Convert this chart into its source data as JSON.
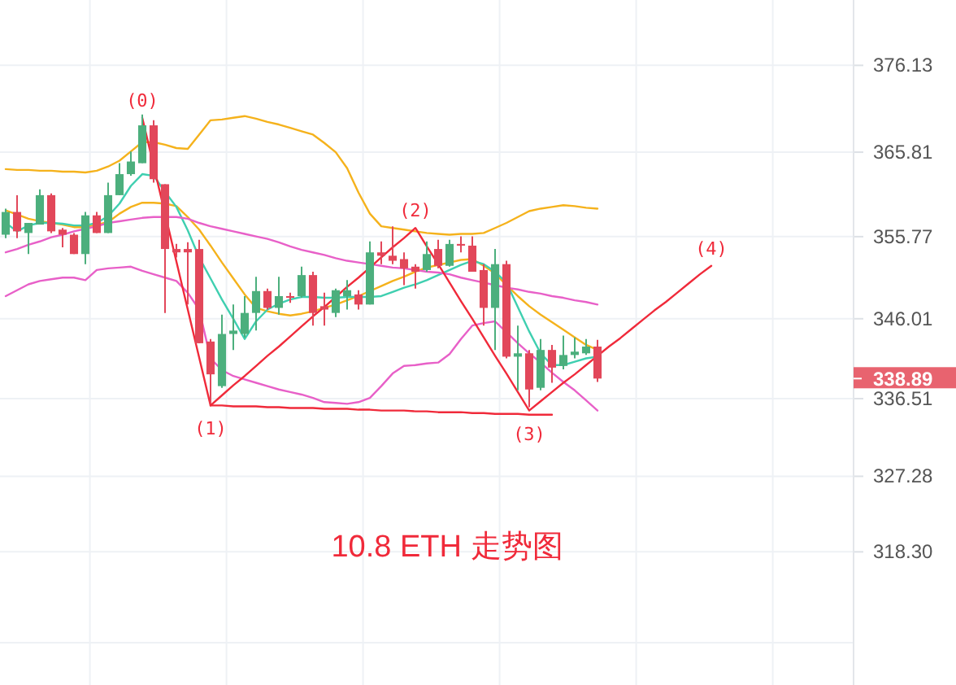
{
  "chart_data": {
    "type": "candlestick",
    "categories": [
      null,
      null,
      null,
      null,
      null,
      null,
      null,
      null,
      null,
      null,
      null,
      null,
      null,
      null,
      null,
      null,
      null,
      null,
      null,
      null,
      null,
      null,
      null,
      null,
      null,
      null,
      null,
      null,
      null,
      null,
      null,
      null,
      null,
      null,
      null,
      null,
      null,
      null,
      null,
      null,
      null,
      null,
      null,
      null,
      null,
      null,
      null,
      null,
      null,
      null,
      null,
      null,
      null,
      null,
      null,
      null,
      null,
      null,
      null,
      null,
      null,
      null,
      null,
      null,
      null,
      null,
      null,
      null,
      null,
      null,
      null,
      null,
      null,
      null,
      null
    ],
    "ohlc": [
      [
        356.0,
        359.1,
        355.6,
        358.7
      ],
      [
        358.7,
        360.7,
        355.6,
        356.4
      ],
      [
        356.2,
        357.4,
        353.7,
        357.4
      ],
      [
        357.2,
        361.4,
        357.2,
        360.7
      ],
      [
        360.7,
        360.9,
        356.2,
        356.4
      ],
      [
        356.6,
        356.8,
        354.5,
        356.0
      ],
      [
        356.0,
        356.2,
        353.7,
        353.7
      ],
      [
        353.7,
        358.7,
        352.5,
        358.3
      ],
      [
        358.3,
        358.7,
        356.2,
        356.2
      ],
      [
        356.2,
        362.2,
        356.2,
        360.7
      ],
      [
        360.7,
        364.5,
        360.7,
        363.2
      ],
      [
        363.2,
        365.9,
        363.0,
        364.7
      ],
      [
        364.5,
        370.3,
        364.5,
        369.0
      ],
      [
        369.0,
        369.6,
        362.2,
        362.6
      ],
      [
        362.0,
        362.0,
        346.7,
        354.3
      ],
      [
        354.3,
        354.9,
        353.3,
        353.9
      ],
      [
        354.3,
        355.1,
        347.7,
        353.9
      ],
      [
        354.3,
        355.4,
        343.1,
        343.1
      ],
      [
        343.3,
        343.6,
        335.9,
        339.4
      ],
      [
        338.0,
        346.5,
        337.8,
        344.2
      ],
      [
        344.2,
        347.7,
        342.3,
        344.6
      ],
      [
        344.2,
        348.7,
        343.8,
        346.7
      ],
      [
        346.7,
        351.0,
        344.6,
        349.3
      ],
      [
        349.3,
        349.6,
        347.1,
        347.3
      ],
      [
        347.3,
        351.0,
        346.5,
        348.7
      ],
      [
        348.7,
        349.1,
        347.9,
        348.5
      ],
      [
        348.7,
        352.2,
        348.5,
        351.2
      ],
      [
        351.2,
        351.6,
        345.2,
        346.7
      ],
      [
        347.5,
        349.1,
        345.2,
        347.1
      ],
      [
        346.7,
        349.6,
        346.2,
        349.4
      ],
      [
        348.7,
        350.6,
        347.1,
        349.4
      ],
      [
        348.9,
        349.4,
        347.1,
        347.7
      ],
      [
        347.7,
        355.2,
        347.7,
        353.9
      ],
      [
        353.9,
        355.2,
        352.5,
        353.5
      ],
      [
        353.5,
        357.0,
        352.5,
        352.9
      ],
      [
        353.1,
        353.9,
        350.0,
        352.0
      ],
      [
        352.2,
        352.5,
        349.6,
        351.6
      ],
      [
        351.8,
        355.2,
        351.6,
        353.7
      ],
      [
        354.3,
        355.4,
        352.0,
        352.3
      ],
      [
        352.3,
        355.4,
        352.2,
        354.9
      ],
      [
        354.9,
        355.8,
        353.9,
        354.7
      ],
      [
        354.7,
        355.8,
        351.6,
        351.6
      ],
      [
        351.8,
        352.5,
        345.2,
        347.3
      ],
      [
        347.3,
        354.3,
        342.3,
        352.5
      ],
      [
        352.5,
        352.9,
        341.3,
        341.5
      ],
      [
        341.5,
        345.2,
        337.5,
        341.9
      ],
      [
        341.9,
        342.3,
        335.5,
        337.6
      ],
      [
        337.8,
        343.6,
        337.5,
        342.3
      ],
      [
        342.3,
        342.9,
        338.4,
        340.2
      ],
      [
        340.4,
        344.0,
        340.0,
        341.7
      ],
      [
        341.7,
        343.8,
        341.3,
        342.1
      ],
      [
        341.9,
        343.6,
        341.7,
        342.7
      ],
      [
        342.7,
        343.5,
        338.5,
        338.9
      ],
      null,
      null,
      null,
      null,
      null,
      null,
      null,
      null,
      null,
      null,
      null,
      null,
      null,
      null,
      null,
      null,
      null,
      null,
      null,
      null,
      null,
      null
    ],
    "series": [
      {
        "type": "line",
        "color": "#f5b21c",
        "values": [
          363.8,
          363.7,
          363.7,
          363.6,
          363.6,
          363.5,
          363.5,
          363.4,
          363.6,
          364.1,
          364.8,
          365.9,
          367.0,
          367.0,
          366.7,
          366.3,
          366.2,
          367.9,
          369.6,
          369.7,
          369.9,
          370.1,
          369.8,
          369.4,
          369.1,
          368.7,
          368.3,
          367.9,
          366.9,
          365.8,
          363.9,
          361.0,
          358.5,
          357.0,
          356.8,
          356.6,
          356.4,
          356.2,
          356.1,
          356.0,
          356.1,
          356.1,
          356.2,
          356.8,
          357.4,
          358.1,
          358.8,
          359.1,
          359.3,
          359.5,
          359.4,
          359.2,
          359.1,
          null,
          null,
          null,
          null,
          null,
          null,
          null,
          null,
          null,
          null,
          null,
          null,
          null,
          null,
          null,
          null,
          null,
          null,
          null,
          null,
          null,
          null
        ]
      },
      {
        "type": "line",
        "color": "#f5b21c",
        "values": [
          358.9,
          358.4,
          357.9,
          357.6,
          357.4,
          357.2,
          356.9,
          356.9,
          357.2,
          357.5,
          358.5,
          359.3,
          359.8,
          359.8,
          359.7,
          359.4,
          358.1,
          356.6,
          354.7,
          352.7,
          350.8,
          348.9,
          347.3,
          346.9,
          346.6,
          346.4,
          346.6,
          346.9,
          347.3,
          347.7,
          348.2,
          348.7,
          349.3,
          349.9,
          350.5,
          351.0,
          351.6,
          352.1,
          352.4,
          352.7,
          353.0,
          353.1,
          352.3,
          351.4,
          350.0,
          348.7,
          347.5,
          346.5,
          345.6,
          344.7,
          343.8,
          342.9,
          342.3,
          null,
          null,
          null,
          null,
          null,
          null,
          null,
          null,
          null,
          null,
          null,
          null,
          null,
          null,
          null,
          null,
          null,
          null,
          null,
          null,
          null,
          null
        ]
      },
      {
        "type": "line",
        "color": "#3fcfb0",
        "values": [
          357.4,
          356.4,
          357.1,
          357.4,
          357.4,
          357.3,
          357.1,
          357.1,
          357.4,
          358.2,
          359.7,
          361.8,
          363.2,
          363.0,
          361.1,
          359.3,
          356.5,
          353.3,
          350.8,
          348.3,
          346.0,
          343.6,
          345.7,
          347.1,
          347.8,
          348.3,
          348.6,
          348.6,
          348.5,
          348.5,
          348.6,
          348.6,
          348.6,
          348.7,
          349.2,
          349.7,
          350.1,
          350.6,
          351.2,
          351.8,
          352.4,
          352.9,
          352.5,
          351.6,
          350.3,
          347.4,
          344.5,
          341.9,
          340.5,
          340.5,
          340.9,
          341.3,
          341.5,
          null,
          null,
          null,
          null,
          null,
          null,
          null,
          null,
          null,
          null,
          null,
          null,
          null,
          null,
          null,
          null,
          null,
          null,
          null,
          null,
          null,
          null
        ]
      },
      {
        "type": "line",
        "color": "#e860c8",
        "values": [
          353.9,
          354.3,
          354.8,
          355.2,
          355.7,
          356.0,
          356.4,
          356.7,
          357.0,
          357.4,
          357.6,
          357.8,
          358.0,
          358.1,
          358.1,
          358.1,
          357.9,
          357.4,
          357.0,
          356.7,
          356.4,
          356.1,
          355.8,
          355.5,
          355.1,
          354.6,
          354.2,
          353.9,
          353.6,
          353.2,
          352.9,
          352.7,
          352.5,
          352.3,
          352.1,
          352.0,
          351.8,
          351.6,
          351.5,
          351.3,
          350.9,
          350.6,
          350.3,
          350.0,
          349.7,
          349.5,
          349.2,
          349.0,
          348.7,
          348.5,
          348.2,
          348.0,
          347.7,
          null,
          null,
          null,
          null,
          null,
          null,
          null,
          null,
          null,
          null,
          null,
          null,
          null,
          null,
          null,
          null,
          null,
          null,
          null,
          null,
          null,
          null
        ]
      },
      {
        "type": "line",
        "color": "#e860c8",
        "values": [
          348.7,
          349.4,
          350.1,
          350.5,
          350.7,
          350.9,
          350.9,
          350.6,
          351.8,
          352.0,
          352.1,
          352.2,
          351.7,
          351.3,
          350.9,
          350.5,
          349.1,
          347.1,
          341.3,
          339.9,
          339.2,
          338.8,
          338.4,
          338.0,
          337.6,
          337.3,
          337.0,
          336.6,
          336.1,
          336.0,
          335.9,
          336.1,
          336.6,
          338.0,
          339.5,
          340.4,
          340.5,
          340.7,
          340.8,
          341.8,
          343.6,
          345.2,
          345.5,
          345.7,
          344.4,
          343.1,
          341.9,
          340.8,
          339.6,
          338.5,
          337.5,
          336.3,
          335.1,
          null,
          null,
          null,
          null,
          null,
          null,
          null,
          null,
          null,
          null,
          null,
          null,
          null,
          null,
          null,
          null,
          null,
          null,
          null,
          null,
          null,
          null
        ]
      },
      {
        "type": "line",
        "color": "#f02a3a",
        "values": [
          null,
          null,
          null,
          null,
          null,
          null,
          null,
          null,
          null,
          null,
          null,
          null,
          369.9,
          364.2,
          358.5,
          352.8,
          347.1,
          341.4,
          335.7,
          336.9,
          338.1,
          339.2,
          340.4,
          341.6,
          342.7,
          343.9,
          345.1,
          346.3,
          347.4,
          348.6,
          349.8,
          350.9,
          352.1,
          353.3,
          354.5,
          355.6,
          356.8,
          354.6,
          352.5,
          350.3,
          348.1,
          346.0,
          343.8,
          341.6,
          339.5,
          337.3,
          335.1,
          336.2,
          337.3,
          338.4,
          339.4,
          340.5,
          341.6,
          342.7,
          343.7,
          344.8,
          345.9,
          347.0,
          348.0,
          349.1,
          350.2,
          351.3,
          352.3,
          null,
          null,
          null,
          null,
          null,
          null,
          null,
          null,
          null,
          null,
          null,
          null
        ]
      },
      {
        "type": "line",
        "color": "#f02a3a",
        "values": [
          null,
          null,
          null,
          null,
          null,
          null,
          null,
          null,
          null,
          null,
          null,
          null,
          null,
          null,
          null,
          null,
          null,
          null,
          335.7,
          335.7,
          335.6,
          335.6,
          335.6,
          335.5,
          335.5,
          335.4,
          335.4,
          335.4,
          335.3,
          335.3,
          335.3,
          335.2,
          335.2,
          335.1,
          335.1,
          335.1,
          335.0,
          335.0,
          334.9,
          334.9,
          334.9,
          334.8,
          334.8,
          334.7,
          334.7,
          334.7,
          334.6,
          334.6,
          334.6,
          null,
          null,
          null,
          null,
          null,
          null,
          null,
          null,
          null,
          null,
          null,
          null,
          null,
          null,
          null,
          null,
          null,
          null,
          null,
          null,
          null,
          null,
          null,
          null,
          null,
          null
        ]
      }
    ],
    "annotations": [
      "(0)",
      "(1)",
      "(2)",
      "(3)",
      "(4)",
      "10.8  ETH 走势图",
      "338.89"
    ],
    "ylim": [
      307.5,
      383.9
    ],
    "yticks": [
      376.13,
      365.81,
      355.77,
      346.01,
      336.51,
      327.28,
      {
        "value": 318.3,
        "label": "318.30"
      }
    ],
    "grid": true,
    "tick_labels": "y"
  }
}
